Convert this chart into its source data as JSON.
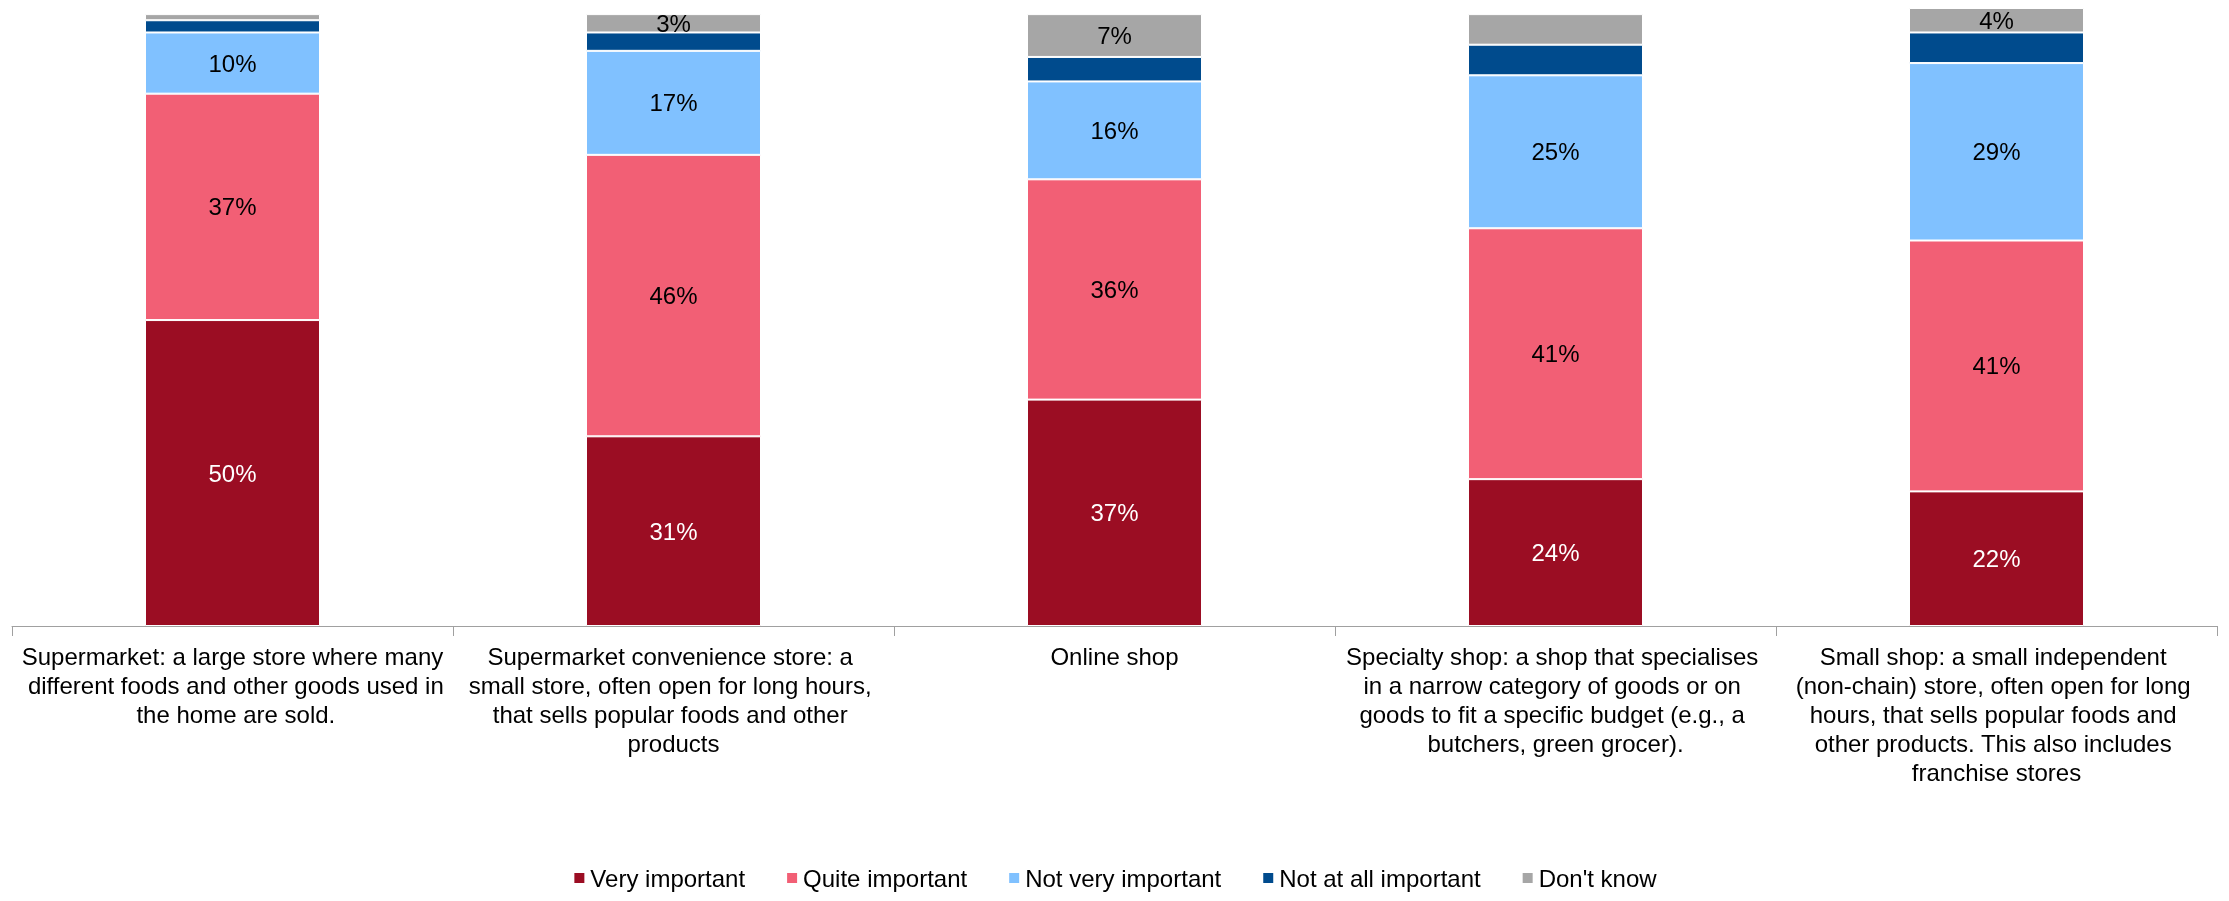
{
  "chart_data": {
    "type": "bar",
    "stacked": true,
    "legend": "bottom",
    "categories": [
      "Supermarket: a large store where many different foods and other goods used in the home are sold.",
      "Supermarket convenience store: a small store, often open for long hours, that sells popular foods and other products",
      "Online shop",
      "Specialty shop: a shop that specialises in a narrow category of goods or on goods to fit a specific budget (e.g., a butchers, green grocer).",
      "Small shop: a small independent (non-chain) store, often open for long hours, that sells popular foods and other products. This also includes franchise stores"
    ],
    "series": [
      {
        "name": "Very important",
        "color": "#9b0d23",
        "values": [
          50,
          31,
          37,
          24,
          22
        ],
        "value_labels": [
          "50%",
          "31%",
          "37%",
          "24%",
          "22%"
        ]
      },
      {
        "name": "Quite important",
        "color": "#f25f75",
        "values": [
          37,
          46,
          36,
          41,
          41
        ],
        "value_labels": [
          "37%",
          "46%",
          "36%",
          "41%",
          "41%"
        ]
      },
      {
        "name": "Not very important",
        "color": "#80c1ff",
        "values": [
          10,
          17,
          16,
          25,
          29
        ],
        "value_labels": [
          "10%",
          "17%",
          "16%",
          "25%",
          "29%"
        ]
      },
      {
        "name": "Not at all important",
        "color": "#004b8d",
        "values": [
          2,
          3,
          4,
          5,
          5
        ],
        "value_labels": [
          null,
          null,
          null,
          null,
          null
        ]
      },
      {
        "name": "Don't know",
        "color": "#a6a6a6",
        "values": [
          1,
          3,
          7,
          5,
          4
        ],
        "value_labels": [
          null,
          "3%",
          "7%",
          null,
          "4%"
        ]
      }
    ]
  }
}
